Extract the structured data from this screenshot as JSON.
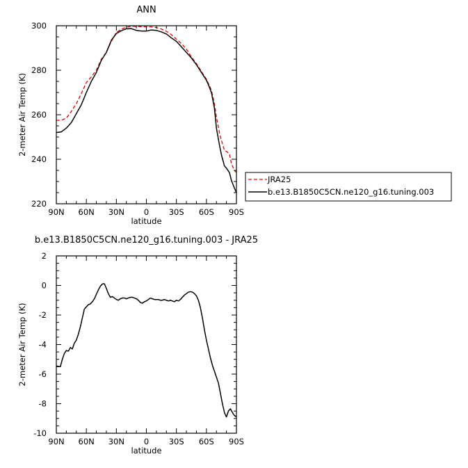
{
  "chart_data": [
    {
      "type": "line",
      "title": "ANN",
      "xlabel": "latitude",
      "ylabel": "2-meter Air Temp (K)",
      "x_ticks": [
        {
          "lat": 90,
          "label": "90N"
        },
        {
          "lat": 60,
          "label": "60N"
        },
        {
          "lat": 30,
          "label": "30N"
        },
        {
          "lat": 0,
          "label": "0"
        },
        {
          "lat": -30,
          "label": "30S"
        },
        {
          "lat": -60,
          "label": "60S"
        },
        {
          "lat": -90,
          "label": "90S"
        }
      ],
      "xlim": [
        90,
        -90
      ],
      "ylim": [
        220,
        300
      ],
      "y_ticks": [
        220,
        240,
        260,
        280,
        300
      ],
      "legend_position": "right",
      "series": [
        {
          "name": "JRA25",
          "color": "#e00000",
          "dash": true,
          "x": [
            90,
            85,
            80,
            75,
            70,
            65,
            60,
            55,
            50,
            45,
            40,
            35,
            30,
            25,
            20,
            15,
            10,
            5,
            0,
            -5,
            -10,
            -15,
            -20,
            -25,
            -30,
            -35,
            -40,
            -45,
            -50,
            -55,
            -60,
            -62,
            -65,
            -68,
            -70,
            -73,
            -75,
            -78,
            -80,
            -83,
            -85,
            -88,
            -90
          ],
          "y": [
            257.5,
            257.5,
            258.5,
            261.5,
            265,
            269.5,
            274.5,
            277,
            280,
            285,
            288,
            293,
            297,
            298.5,
            299.3,
            299.8,
            299.7,
            299.6,
            299.5,
            299.5,
            299.2,
            298.5,
            297.5,
            296,
            294,
            292,
            289.5,
            286,
            283,
            279.5,
            276,
            274,
            271,
            265,
            259,
            252,
            248.5,
            244,
            243.5,
            242.5,
            238,
            235,
            234
          ]
        },
        {
          "name": "b.e13.B1850C5CN.ne120_g16.tuning.003",
          "color": "#000000",
          "dash": false,
          "x": [
            90,
            85,
            80,
            75,
            70,
            65,
            60,
            55,
            50,
            45,
            40,
            35,
            30,
            25,
            20,
            15,
            10,
            5,
            0,
            -5,
            -10,
            -15,
            -20,
            -25,
            -30,
            -35,
            -40,
            -45,
            -50,
            -55,
            -60,
            -62,
            -65,
            -68,
            -70,
            -73,
            -75,
            -78,
            -80,
            -83,
            -85,
            -88,
            -90
          ],
          "y": [
            252,
            252.3,
            254,
            256.5,
            260.5,
            264.5,
            270,
            275,
            279,
            284.5,
            288,
            293.5,
            296.5,
            297.8,
            298.6,
            298.7,
            297.9,
            297.6,
            297.6,
            298.1,
            297.9,
            297.2,
            296.3,
            294.5,
            293,
            290.5,
            288,
            285.5,
            282.5,
            279,
            275.5,
            273.5,
            270,
            263,
            254,
            246.5,
            242,
            237,
            236,
            234,
            230.5,
            227,
            225
          ]
        }
      ]
    },
    {
      "type": "line",
      "title": "b.e13.B1850C5CN.ne120_g16.tuning.003 - JRA25",
      "xlabel": "latitude",
      "ylabel": "2-meter Air Temp (K)",
      "x_ticks": [
        {
          "lat": 90,
          "label": "90N"
        },
        {
          "lat": 60,
          "label": "60N"
        },
        {
          "lat": 30,
          "label": "30N"
        },
        {
          "lat": 0,
          "label": "0"
        },
        {
          "lat": -30,
          "label": "30S"
        },
        {
          "lat": -60,
          "label": "60S"
        },
        {
          "lat": -90,
          "label": "90S"
        }
      ],
      "xlim": [
        90,
        -90
      ],
      "ylim": [
        -10,
        2
      ],
      "y_ticks": [
        -10,
        -8,
        -6,
        -4,
        -2,
        0,
        2
      ],
      "series": [
        {
          "color": "#000000",
          "dash": false,
          "x": [
            90,
            86,
            84,
            82,
            80,
            78,
            76,
            74,
            72,
            70,
            68,
            66,
            64,
            62,
            60,
            58,
            56,
            54,
            52,
            50,
            48,
            46,
            44,
            42,
            40,
            38,
            36,
            34,
            32,
            30,
            28,
            26,
            24,
            22,
            20,
            18,
            16,
            14,
            12,
            10,
            8,
            6,
            4,
            2,
            0,
            -2,
            -4,
            -6,
            -8,
            -10,
            -12,
            -14,
            -16,
            -18,
            -20,
            -22,
            -24,
            -26,
            -28,
            -30,
            -32,
            -34,
            -36,
            -38,
            -40,
            -42,
            -44,
            -46,
            -48,
            -50,
            -52,
            -54,
            -56,
            -58,
            -60,
            -62,
            -64,
            -66,
            -68,
            -70,
            -72,
            -74,
            -76,
            -78,
            -80,
            -82,
            -84,
            -86,
            -88,
            -90
          ],
          "y": [
            -5.45,
            -5.5,
            -5.0,
            -4.6,
            -4.4,
            -4.45,
            -4.2,
            -4.3,
            -3.9,
            -3.7,
            -3.3,
            -2.8,
            -2.2,
            -1.6,
            -1.45,
            -1.3,
            -1.25,
            -1.1,
            -0.9,
            -0.6,
            -0.3,
            -0.05,
            0.1,
            0.12,
            -0.2,
            -0.55,
            -0.8,
            -0.75,
            -0.85,
            -0.95,
            -1.0,
            -0.9,
            -0.85,
            -0.85,
            -0.9,
            -0.85,
            -0.8,
            -0.8,
            -0.85,
            -0.9,
            -1.0,
            -1.15,
            -1.2,
            -1.1,
            -1.05,
            -0.95,
            -0.85,
            -0.9,
            -0.95,
            -0.95,
            -0.95,
            -1.0,
            -1.0,
            -0.95,
            -1.0,
            -1.05,
            -1.0,
            -1.05,
            -1.1,
            -1.0,
            -1.05,
            -0.95,
            -0.8,
            -0.65,
            -0.55,
            -0.45,
            -0.42,
            -0.45,
            -0.55,
            -0.7,
            -1.0,
            -1.5,
            -2.2,
            -3.0,
            -3.7,
            -4.3,
            -4.9,
            -5.4,
            -5.8,
            -6.2,
            -6.6,
            -7.3,
            -8.0,
            -8.6,
            -8.9,
            -8.5,
            -8.35,
            -8.6,
            -8.8,
            -8.9
          ]
        }
      ]
    }
  ]
}
